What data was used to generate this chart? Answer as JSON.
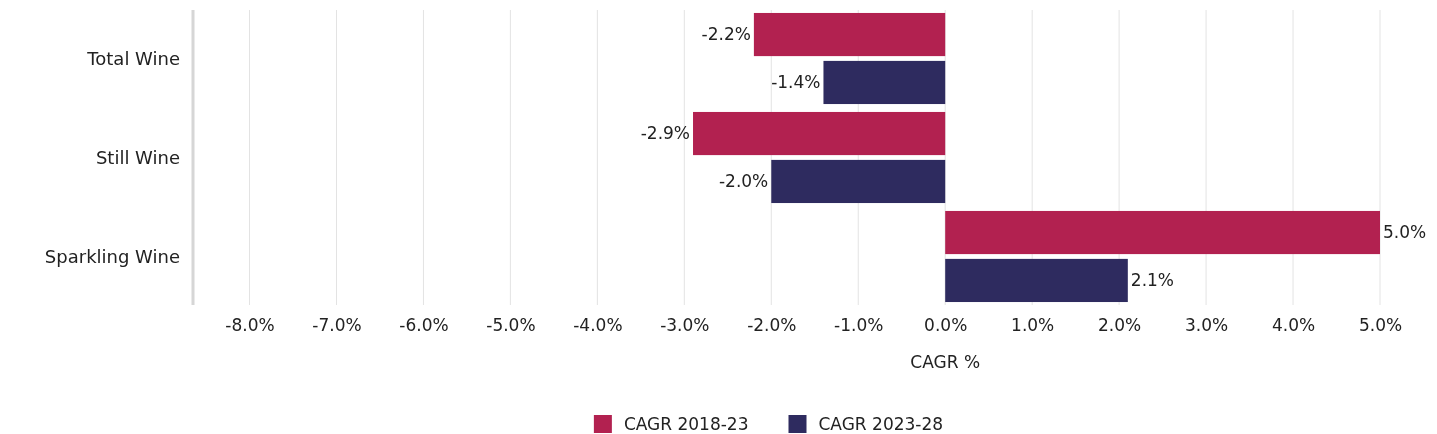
{
  "chart_data": {
    "type": "bar",
    "orientation": "horizontal",
    "xlabel": "CAGR %",
    "categories": [
      "Total Wine",
      "Still Wine",
      "Sparkling Wine"
    ],
    "series": [
      {
        "name": "CAGR 2018-23",
        "color": "#b22150",
        "values": [
          -2.2,
          -2.9,
          5.0
        ],
        "value_labels": [
          "-2.2%",
          "-2.9%",
          "5.0%"
        ]
      },
      {
        "name": "CAGR 2023-28",
        "color": "#2e2b5f",
        "values": [
          -1.4,
          -2.0,
          2.1
        ],
        "value_labels": [
          "-1.4%",
          "-2.0%",
          "2.1%"
        ]
      }
    ],
    "xlim": [
      -8.65,
      5.0
    ],
    "xticks": [
      {
        "value": -8,
        "label": "-8.0%"
      },
      {
        "value": -7,
        "label": "-7.0%"
      },
      {
        "value": -6,
        "label": "-6.0%"
      },
      {
        "value": -5,
        "label": "-5.0%"
      },
      {
        "value": -4,
        "label": "-4.0%"
      },
      {
        "value": -3,
        "label": "-3.0%"
      },
      {
        "value": -2,
        "label": "-2.0%"
      },
      {
        "value": -1,
        "label": "-1.0%"
      },
      {
        "value": 0,
        "label": "0.0%"
      },
      {
        "value": 1,
        "label": "1.0%"
      },
      {
        "value": 2,
        "label": "2.0%"
      },
      {
        "value": 3,
        "label": "3.0%"
      },
      {
        "value": 4,
        "label": "4.0%"
      },
      {
        "value": 5,
        "label": "5.0%"
      }
    ],
    "grid": "x",
    "legend": "bottom"
  }
}
